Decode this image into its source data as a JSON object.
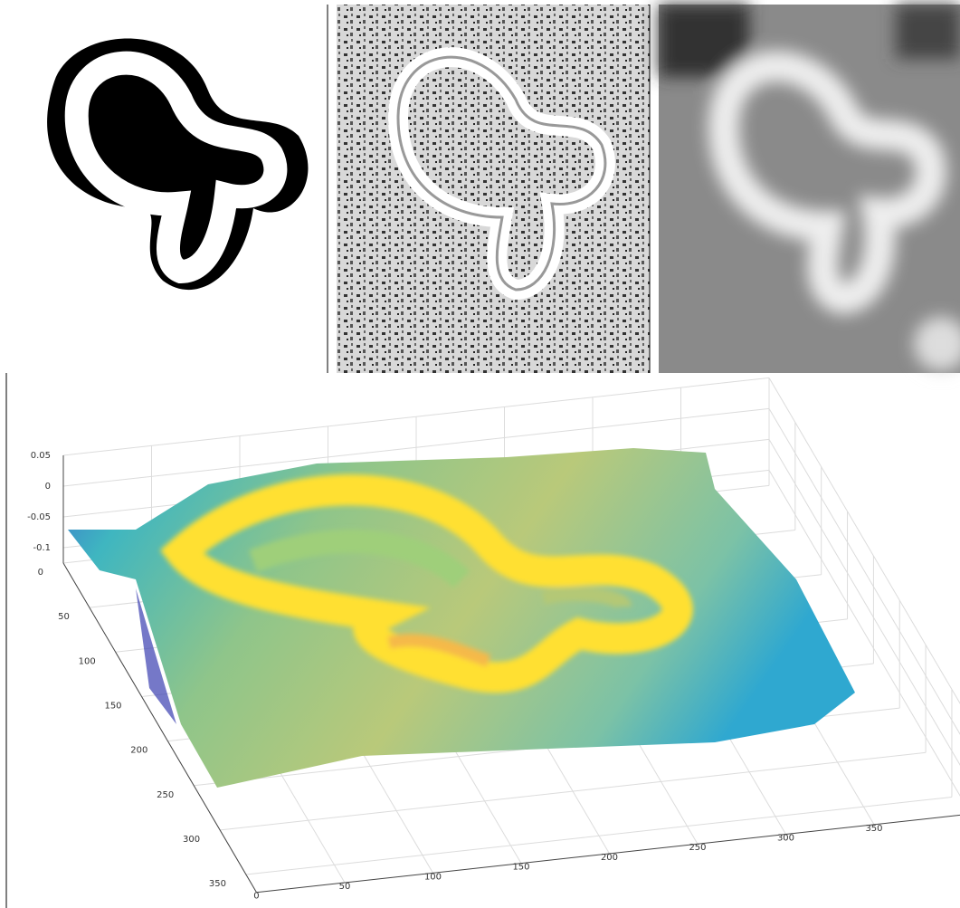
{
  "chart_data": {
    "type": "surface",
    "xlim": [
      0,
      400
    ],
    "ylim": [
      0,
      370
    ],
    "zlim": [
      -0.125,
      0.05
    ],
    "xticks": [
      0,
      50,
      100,
      150,
      200,
      250,
      300,
      350
    ],
    "yticks": [
      0,
      50,
      100,
      150,
      200,
      250,
      300,
      350
    ],
    "zticks": [
      0.05,
      0,
      -0.05,
      -0.1
    ],
    "grid": true
  }
}
